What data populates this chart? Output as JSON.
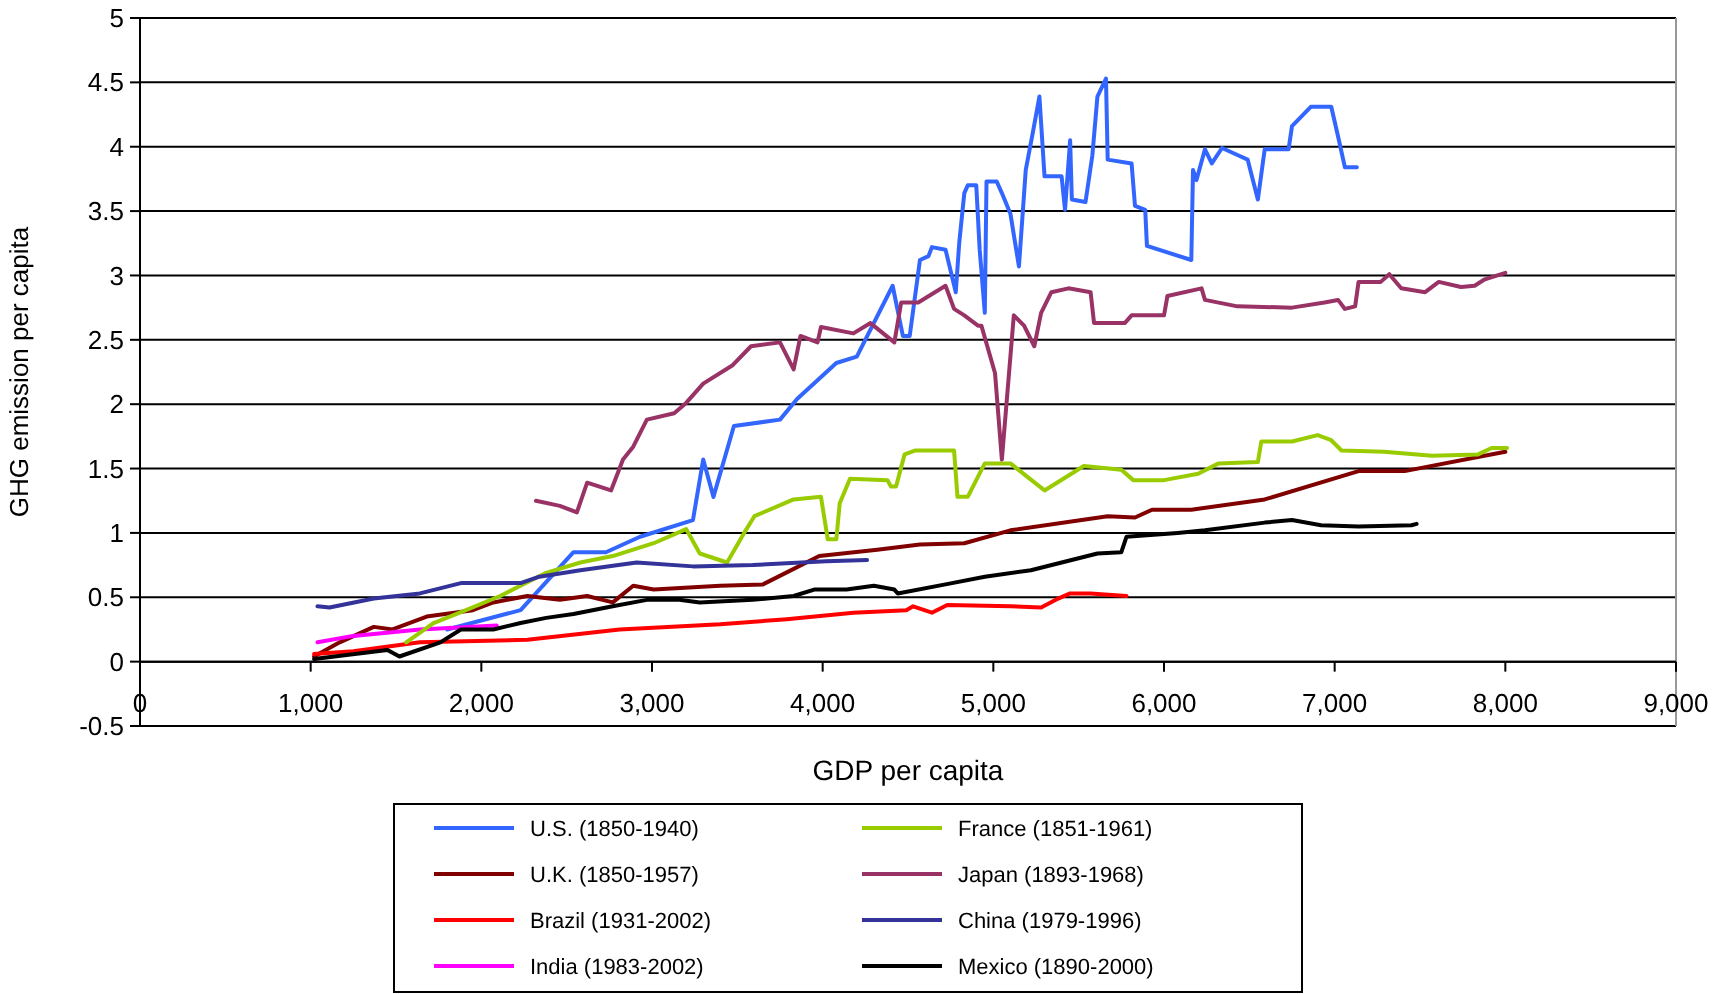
{
  "chart_data": {
    "type": "line",
    "xlabel": "GDP per capita",
    "ylabel": "GHG emission per capita",
    "xlim": [
      0,
      9000
    ],
    "ylim": [
      -0.5,
      5
    ],
    "xticks": [
      0,
      {
        "value": 1000,
        "label": "1,000"
      },
      {
        "value": 2000,
        "label": "2,000"
      },
      {
        "value": 3000,
        "label": "3,000"
      },
      {
        "value": 4000,
        "label": "4,000"
      },
      {
        "value": 5000,
        "label": "5,000"
      },
      {
        "value": 6000,
        "label": "6,000"
      },
      {
        "value": 7000,
        "label": "7,000"
      },
      {
        "value": 8000,
        "label": "8,000"
      },
      {
        "value": 9000,
        "label": "9,000"
      }
    ],
    "yticks": [
      -0.5,
      0,
      0.5,
      1,
      1.5,
      2,
      2.5,
      3,
      3.5,
      4,
      4.5,
      5
    ],
    "grid": "y",
    "legend": "bottom",
    "marker": "none",
    "line_style": "solid",
    "series": [
      {
        "name": "U.S. (1850-1940)",
        "color": "#3366ff",
        "x": [
          1800,
          2230,
          2540,
          2730,
          2930,
          3240,
          3300,
          3360,
          3480,
          3750,
          3850,
          4080,
          4200,
          4410,
          4470,
          4510,
          4570,
          4620,
          4640,
          4720,
          4780,
          4800,
          4830,
          4850,
          4900,
          4920,
          4950,
          4960,
          5020,
          5050,
          5100,
          5150,
          5190,
          5230,
          5270,
          5300,
          5400,
          5420,
          5450,
          5460,
          5540,
          5580,
          5610,
          5660,
          5670,
          5810,
          5830,
          5890,
          5900,
          6160,
          6170,
          6190,
          6240,
          6280,
          6340,
          6440,
          6490,
          6550,
          6590,
          6730,
          6750,
          6860,
          6980,
          7020,
          7060,
          7130
        ],
        "values": [
          0.25,
          0.4,
          0.85,
          0.85,
          0.97,
          1.1,
          1.57,
          1.28,
          1.83,
          1.88,
          2.04,
          2.32,
          2.37,
          2.92,
          2.53,
          2.53,
          3.12,
          3.15,
          3.22,
          3.2,
          2.87,
          3.25,
          3.64,
          3.7,
          3.7,
          3.2,
          2.71,
          3.73,
          3.73,
          3.64,
          3.48,
          3.07,
          3.82,
          4.1,
          4.39,
          3.77,
          3.77,
          3.51,
          4.05,
          3.59,
          3.57,
          3.93,
          4.39,
          4.53,
          3.9,
          3.87,
          3.54,
          3.51,
          3.23,
          3.12,
          3.82,
          3.74,
          3.98,
          3.87,
          3.99,
          3.93,
          3.9,
          3.59,
          3.98,
          3.98,
          4.16,
          4.31,
          4.31,
          4.08,
          3.84,
          3.84
        ]
      },
      {
        "name": "U.K. (1850-1957)",
        "color": "#800000",
        "x": [
          1020,
          1170,
          1370,
          1480,
          1680,
          1950,
          2070,
          2270,
          2460,
          2620,
          2770,
          2890,
          3010,
          3400,
          3650,
          3980,
          4320,
          4570,
          4830,
          5100,
          5670,
          5830,
          5930,
          6160,
          6590,
          7140,
          7410,
          8000
        ],
        "values": [
          0.04,
          0.15,
          0.27,
          0.25,
          0.35,
          0.4,
          0.46,
          0.51,
          0.48,
          0.51,
          0.46,
          0.59,
          0.56,
          0.59,
          0.6,
          0.82,
          0.87,
          0.91,
          0.92,
          1.02,
          1.13,
          1.12,
          1.18,
          1.18,
          1.26,
          1.48,
          1.48,
          1.63
        ]
      },
      {
        "name": "Brazil (1931-2002)",
        "color": "#ff0000",
        "x": [
          1020,
          1250,
          1640,
          2270,
          2810,
          3400,
          3790,
          4180,
          4490,
          4530,
          4640,
          4730,
          5100,
          5280,
          5380,
          5450,
          5570,
          5780
        ],
        "values": [
          0.06,
          0.08,
          0.15,
          0.17,
          0.25,
          0.29,
          0.33,
          0.38,
          0.4,
          0.43,
          0.38,
          0.44,
          0.43,
          0.42,
          0.49,
          0.53,
          0.53,
          0.51
        ]
      },
      {
        "name": "India (1983-2002)",
        "color": "#ff00ff",
        "x": [
          1040,
          1250,
          1640,
          2090
        ],
        "values": [
          0.15,
          0.2,
          0.25,
          0.28
        ]
      },
      {
        "name": "France (1851-1961)",
        "color": "#99cc00",
        "x": [
          1560,
          1720,
          1910,
          2110,
          2380,
          2580,
          2770,
          3010,
          3200,
          3280,
          3440,
          3540,
          3600,
          3830,
          3990,
          4030,
          4080,
          4100,
          4160,
          4380,
          4400,
          4430,
          4480,
          4540,
          4770,
          4790,
          4850,
          4950,
          5100,
          5300,
          5530,
          5750,
          5820,
          6000,
          6200,
          6320,
          6550,
          6570,
          6750,
          6900,
          6980,
          7040,
          7290,
          7570,
          7840,
          7920,
          8010
        ],
        "values": [
          0.15,
          0.3,
          0.4,
          0.51,
          0.69,
          0.77,
          0.82,
          0.92,
          1.03,
          0.84,
          0.77,
          1.0,
          1.13,
          1.26,
          1.28,
          0.95,
          0.95,
          1.23,
          1.42,
          1.41,
          1.36,
          1.36,
          1.61,
          1.64,
          1.64,
          1.28,
          1.28,
          1.54,
          1.54,
          1.33,
          1.52,
          1.49,
          1.41,
          1.41,
          1.46,
          1.54,
          1.55,
          1.71,
          1.71,
          1.76,
          1.72,
          1.64,
          1.63,
          1.6,
          1.61,
          1.66,
          1.66
        ]
      },
      {
        "name": "Japan (1893-1968)",
        "color": "#993366",
        "x": [
          2320,
          2460,
          2560,
          2620,
          2760,
          2830,
          2890,
          2970,
          3130,
          3200,
          3300,
          3470,
          3580,
          3750,
          3830,
          3870,
          3970,
          3990,
          4180,
          4280,
          4420,
          4460,
          4560,
          4720,
          4770,
          4830,
          4910,
          4930,
          5010,
          5050,
          5120,
          5180,
          5240,
          5280,
          5340,
          5440,
          5570,
          5590,
          5770,
          5810,
          6000,
          6020,
          6220,
          6240,
          6430,
          6750,
          6940,
          7020,
          7060,
          7120,
          7140,
          7270,
          7320,
          7390,
          7530,
          7610,
          7740,
          7820,
          7880,
          8000
        ],
        "values": [
          1.25,
          1.21,
          1.16,
          1.39,
          1.33,
          1.57,
          1.67,
          1.88,
          1.93,
          2.01,
          2.16,
          2.3,
          2.45,
          2.48,
          2.27,
          2.53,
          2.48,
          2.6,
          2.55,
          2.63,
          2.48,
          2.79,
          2.79,
          2.92,
          2.74,
          2.69,
          2.61,
          2.61,
          2.24,
          1.57,
          2.69,
          2.61,
          2.45,
          2.71,
          2.87,
          2.9,
          2.87,
          2.63,
          2.63,
          2.69,
          2.69,
          2.84,
          2.9,
          2.81,
          2.76,
          2.75,
          2.79,
          2.81,
          2.74,
          2.76,
          2.95,
          2.95,
          3.01,
          2.9,
          2.87,
          2.95,
          2.91,
          2.92,
          2.97,
          3.02
        ]
      },
      {
        "name": "China (1979-1996)",
        "color": "#333399",
        "x": [
          1040,
          1110,
          1370,
          1640,
          1880,
          2230,
          2340,
          2580,
          2910,
          3240,
          3590,
          4020,
          4260
        ],
        "values": [
          0.43,
          0.42,
          0.49,
          0.53,
          0.61,
          0.61,
          0.66,
          0.71,
          0.77,
          0.74,
          0.75,
          0.78,
          0.79
        ]
      },
      {
        "name": "Mexico (1890-2000)",
        "color": "#000000",
        "x": [
          1020,
          1450,
          1520,
          1760,
          1880,
          2070,
          2230,
          2380,
          2540,
          2770,
          2970,
          3160,
          3280,
          3590,
          3830,
          3950,
          4140,
          4300,
          4420,
          4440,
          4720,
          4950,
          5220,
          5610,
          5750,
          5780,
          6080,
          6240,
          6590,
          6750,
          6920,
          7140,
          7450,
          7480
        ],
        "values": [
          0.02,
          0.09,
          0.04,
          0.15,
          0.25,
          0.25,
          0.3,
          0.34,
          0.37,
          0.43,
          0.48,
          0.48,
          0.46,
          0.48,
          0.51,
          0.56,
          0.56,
          0.59,
          0.56,
          0.53,
          0.6,
          0.66,
          0.71,
          0.84,
          0.85,
          0.97,
          1.0,
          1.02,
          1.08,
          1.1,
          1.06,
          1.05,
          1.06,
          1.07
        ]
      }
    ]
  }
}
